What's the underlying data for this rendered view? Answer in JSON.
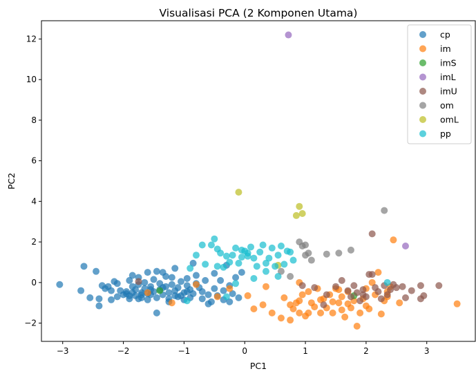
{
  "chart_data": {
    "type": "scatter",
    "title": "Visualisasi PCA (2 Komponen Utama)",
    "xlabel": "PC1",
    "ylabel": "PC2",
    "xlim": [
      -3.35,
      3.8
    ],
    "ylim": [
      -2.9,
      12.9
    ],
    "xticks": [
      -3,
      -2,
      -1,
      0,
      1,
      2,
      3
    ],
    "yticks": [
      -2,
      0,
      2,
      4,
      6,
      8,
      10,
      12
    ],
    "xtick_labels": [
      "−3",
      "−2",
      "−1",
      "0",
      "1",
      "2",
      "3"
    ],
    "ytick_labels": [
      "−2",
      "0",
      "2",
      "4",
      "6",
      "8",
      "10",
      "12"
    ],
    "grid": false,
    "legend_position": "top-right",
    "series": [
      {
        "name": "cp",
        "color": "#1f77b4",
        "points": [
          [
            -3.05,
            -0.1
          ],
          [
            -2.7,
            -0.4
          ],
          [
            -2.65,
            0.8
          ],
          [
            -2.55,
            -0.75
          ],
          [
            -2.45,
            0.55
          ],
          [
            -2.4,
            -0.8
          ],
          [
            -2.4,
            -1.15
          ],
          [
            -2.35,
            -0.15
          ],
          [
            -2.3,
            -0.3
          ],
          [
            -2.25,
            -0.2
          ],
          [
            -2.2,
            -0.85
          ],
          [
            -2.15,
            0.05
          ],
          [
            -2.1,
            -0.05
          ],
          [
            -2.05,
            -0.4
          ],
          [
            -2.0,
            -0.6
          ],
          [
            -1.95,
            -0.45
          ],
          [
            -1.95,
            -0.55
          ],
          [
            -1.9,
            -0.8
          ],
          [
            -1.9,
            0.1
          ],
          [
            -1.85,
            -0.2
          ],
          [
            -1.85,
            0.35
          ],
          [
            -1.8,
            -0.35
          ],
          [
            -1.8,
            -0.65
          ],
          [
            -1.75,
            -0.1
          ],
          [
            -1.75,
            0.25
          ],
          [
            -1.7,
            -0.75
          ],
          [
            -1.7,
            -0.5
          ],
          [
            -1.65,
            0.0
          ],
          [
            -1.65,
            -0.3
          ],
          [
            -1.6,
            -0.85
          ],
          [
            -1.6,
            0.5
          ],
          [
            -1.55,
            -0.2
          ],
          [
            -1.55,
            -0.6
          ],
          [
            -1.5,
            0.15
          ],
          [
            -1.5,
            -0.45
          ],
          [
            -1.45,
            0.55
          ],
          [
            -1.45,
            -0.75
          ],
          [
            -1.4,
            -0.05
          ],
          [
            -1.4,
            -0.35
          ],
          [
            -1.35,
            0.5
          ],
          [
            -1.35,
            -0.6
          ],
          [
            -1.3,
            -0.2
          ],
          [
            -1.3,
            0.3
          ],
          [
            -1.25,
            -0.5
          ],
          [
            -1.25,
            -0.8
          ],
          [
            -1.2,
            -0.1
          ],
          [
            -1.2,
            0.25
          ],
          [
            -1.15,
            -0.4
          ],
          [
            -1.15,
            0.7
          ],
          [
            -1.1,
            -0.7
          ],
          [
            -1.1,
            -0.25
          ],
          [
            -1.05,
            0.05
          ],
          [
            -1.0,
            -0.5
          ],
          [
            -1.0,
            -0.85
          ],
          [
            -0.95,
            -0.15
          ],
          [
            -0.95,
            0.2
          ],
          [
            -0.9,
            -0.35
          ],
          [
            -0.9,
            -0.75
          ],
          [
            -0.85,
            -0.55
          ],
          [
            -0.85,
            0.95
          ],
          [
            -0.8,
            -0.05
          ],
          [
            -0.8,
            0.35
          ],
          [
            -0.75,
            -0.25
          ],
          [
            -0.7,
            -0.8
          ],
          [
            -0.7,
            -0.45
          ],
          [
            -0.65,
            0.1
          ],
          [
            -0.6,
            -0.6
          ],
          [
            -0.55,
            -0.95
          ],
          [
            -0.5,
            -0.3
          ],
          [
            -0.5,
            0.45
          ],
          [
            -0.45,
            -0.65
          ],
          [
            -0.4,
            0.1
          ],
          [
            -0.35,
            -0.4
          ],
          [
            -0.3,
            0.85
          ],
          [
            -0.25,
            -0.15
          ],
          [
            -0.2,
            -0.55
          ],
          [
            -0.15,
            0.25
          ],
          [
            -0.1,
            -0.75
          ],
          [
            -0.05,
            0.5
          ],
          [
            -1.75,
            -0.8
          ],
          [
            -1.55,
            -0.35
          ],
          [
            -2.1,
            -0.7
          ],
          [
            -1.9,
            -0.65
          ],
          [
            -1.45,
            -1.5
          ],
          [
            -1.6,
            -0.55
          ],
          [
            -1.05,
            -0.65
          ],
          [
            -0.6,
            -1.05
          ],
          [
            -1.25,
            -0.95
          ],
          [
            -1.85,
            -0.5
          ],
          [
            -1.7,
            -0.6
          ],
          [
            -0.35,
            -0.85
          ],
          [
            -0.25,
            -0.95
          ],
          [
            -0.95,
            -0.45
          ],
          [
            -1.15,
            -0.65
          ],
          [
            -1.35,
            -0.25
          ],
          [
            -2.2,
            -0.4
          ]
        ]
      },
      {
        "name": "im",
        "color": "#ff7f0e",
        "points": [
          [
            -1.6,
            -0.5
          ],
          [
            -1.2,
            -1.0
          ],
          [
            -0.8,
            -0.1
          ],
          [
            -0.45,
            -0.7
          ],
          [
            -0.25,
            -0.3
          ],
          [
            0.05,
            -0.65
          ],
          [
            0.15,
            -1.3
          ],
          [
            0.3,
            -1.1
          ],
          [
            0.45,
            -1.5
          ],
          [
            0.6,
            -1.75
          ],
          [
            0.75,
            -1.85
          ],
          [
            0.75,
            -1.1
          ],
          [
            0.8,
            -1.3
          ],
          [
            0.85,
            -1.0
          ],
          [
            0.9,
            -0.9
          ],
          [
            0.9,
            -1.5
          ],
          [
            0.95,
            -0.6
          ],
          [
            1.0,
            -1.65
          ],
          [
            1.05,
            -1.5
          ],
          [
            1.1,
            -1.0
          ],
          [
            1.15,
            -1.2
          ],
          [
            1.2,
            -0.3
          ],
          [
            1.25,
            -1.5
          ],
          [
            1.3,
            -0.8
          ],
          [
            1.35,
            -1.25
          ],
          [
            1.4,
            -0.6
          ],
          [
            1.45,
            -1.5
          ],
          [
            1.5,
            -0.3
          ],
          [
            1.55,
            -1.0
          ],
          [
            1.6,
            -1.35
          ],
          [
            1.6,
            -0.7
          ],
          [
            1.65,
            -1.7
          ],
          [
            1.7,
            -0.45
          ],
          [
            1.75,
            -1.25
          ],
          [
            1.8,
            -0.9
          ],
          [
            1.85,
            -2.15
          ],
          [
            1.9,
            -1.5
          ],
          [
            1.95,
            -0.8
          ],
          [
            2.0,
            -0.3
          ],
          [
            2.05,
            -1.3
          ],
          [
            2.1,
            0.0
          ],
          [
            2.15,
            -0.6
          ],
          [
            2.2,
            0.5
          ],
          [
            2.25,
            -1.55
          ],
          [
            2.3,
            -0.9
          ],
          [
            2.35,
            -0.45
          ],
          [
            2.4,
            -0.2
          ],
          [
            2.45,
            2.1
          ],
          [
            2.55,
            -1.0
          ],
          [
            3.5,
            -1.05
          ],
          [
            0.35,
            -0.2
          ],
          [
            0.9,
            0.0
          ],
          [
            1.25,
            -0.85
          ],
          [
            1.45,
            -0.95
          ],
          [
            1.7,
            -1.05
          ],
          [
            2.0,
            -1.15
          ],
          [
            1.55,
            -0.35
          ],
          [
            2.35,
            -0.7
          ],
          [
            0.65,
            -0.75
          ],
          [
            1.05,
            -0.45
          ]
        ]
      },
      {
        "name": "imS",
        "color": "#2ca02c",
        "points": [
          [
            -1.4,
            -0.4
          ],
          [
            1.8,
            -0.65
          ]
        ]
      },
      {
        "name": "imL",
        "color": "#9467bd",
        "points": [
          [
            0.72,
            12.2
          ],
          [
            2.65,
            1.8
          ]
        ]
      },
      {
        "name": "imU",
        "color": "#8c564b",
        "points": [
          [
            -1.75,
            0.05
          ],
          [
            1.35,
            -0.6
          ],
          [
            1.5,
            -0.2
          ],
          [
            1.6,
            0.1
          ],
          [
            1.7,
            -0.4
          ],
          [
            1.75,
            -0.7
          ],
          [
            1.8,
            -0.15
          ],
          [
            1.85,
            -0.5
          ],
          [
            1.9,
            -0.9
          ],
          [
            1.95,
            -0.35
          ],
          [
            2.0,
            -0.7
          ],
          [
            2.05,
            0.4
          ],
          [
            2.1,
            0.4
          ],
          [
            2.15,
            -0.25
          ],
          [
            2.2,
            -0.45
          ],
          [
            2.25,
            -0.8
          ],
          [
            2.3,
            -0.15
          ],
          [
            2.35,
            -0.6
          ],
          [
            2.4,
            -0.35
          ],
          [
            2.45,
            -0.1
          ],
          [
            2.5,
            -0.25
          ],
          [
            2.6,
            -0.2
          ],
          [
            2.65,
            -0.75
          ],
          [
            2.75,
            -0.4
          ],
          [
            2.9,
            -0.15
          ],
          [
            2.95,
            -0.65
          ],
          [
            3.2,
            -0.15
          ],
          [
            2.1,
            2.4
          ],
          [
            1.15,
            -0.25
          ],
          [
            1.3,
            -1.1
          ],
          [
            0.95,
            -0.15
          ],
          [
            2.9,
            -0.8
          ],
          [
            1.95,
            -0.6
          ]
        ]
      },
      {
        "name": "om",
        "color": "#7f7f7f",
        "points": [
          [
            0.9,
            2.0
          ],
          [
            0.95,
            1.8
          ],
          [
            1.0,
            1.85
          ],
          [
            1.0,
            1.35
          ],
          [
            1.05,
            1.45
          ],
          [
            1.1,
            1.1
          ],
          [
            1.35,
            1.4
          ],
          [
            1.55,
            1.45
          ],
          [
            1.75,
            1.6
          ],
          [
            2.3,
            3.55
          ],
          [
            0.75,
            0.3
          ],
          [
            0.6,
            0.55
          ]
        ]
      },
      {
        "name": "omL",
        "color": "#bcbd22",
        "points": [
          [
            -0.1,
            4.45
          ],
          [
            0.85,
            3.3
          ],
          [
            0.9,
            3.75
          ],
          [
            0.95,
            3.4
          ],
          [
            0.55,
            0.85
          ]
        ]
      },
      {
        "name": "pp",
        "color": "#17becf",
        "points": [
          [
            -0.95,
            -0.9
          ],
          [
            -0.8,
            1.35
          ],
          [
            -0.7,
            1.85
          ],
          [
            -0.55,
            1.85
          ],
          [
            -0.5,
            2.15
          ],
          [
            -0.45,
            1.65
          ],
          [
            -0.4,
            1.45
          ],
          [
            -0.35,
            0.75
          ],
          [
            -0.3,
            1.3
          ],
          [
            -0.25,
            1.0
          ],
          [
            -0.2,
            1.35
          ],
          [
            -0.15,
            1.7
          ],
          [
            -0.1,
            0.95
          ],
          [
            -0.05,
            1.25
          ],
          [
            0.0,
            1.55
          ],
          [
            0.05,
            1.3
          ],
          [
            0.1,
            1.75
          ],
          [
            0.15,
            1.2
          ],
          [
            0.2,
            0.8
          ],
          [
            0.25,
            1.5
          ],
          [
            0.3,
            1.85
          ],
          [
            0.35,
            0.55
          ],
          [
            0.4,
            1.2
          ],
          [
            0.45,
            1.7
          ],
          [
            0.5,
            0.8
          ],
          [
            0.55,
            1.35
          ],
          [
            0.6,
            1.8
          ],
          [
            0.65,
            0.9
          ],
          [
            0.7,
            1.55
          ],
          [
            0.75,
            1.5
          ],
          [
            0.8,
            1.1
          ],
          [
            -0.9,
            0.7
          ],
          [
            -0.65,
            0.9
          ],
          [
            -0.45,
            0.8
          ],
          [
            -0.15,
            -0.05
          ],
          [
            -0.05,
            1.6
          ],
          [
            0.15,
            0.2
          ],
          [
            0.35,
            0.95
          ],
          [
            2.35,
            0.0
          ],
          [
            -0.3,
            -0.7
          ],
          [
            0.55,
            0.3
          ],
          [
            0.05,
            1.45
          ]
        ]
      }
    ]
  }
}
